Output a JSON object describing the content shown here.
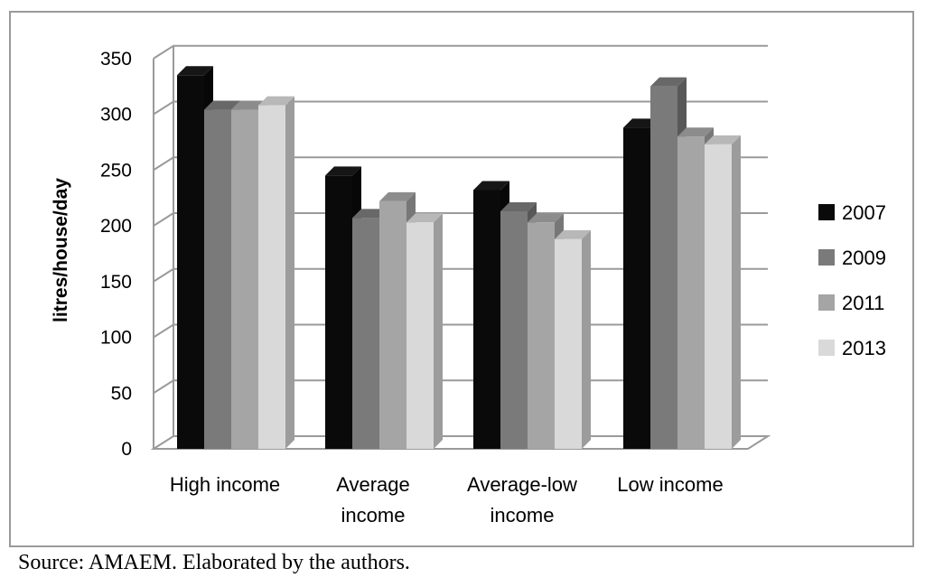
{
  "chart_data": {
    "type": "bar",
    "style": "3d-clustered",
    "categories": [
      "High income",
      "Average income",
      "Average-low income",
      "Low income"
    ],
    "category_lines": [
      [
        "High income"
      ],
      [
        "Average",
        "income"
      ],
      [
        "Average-low",
        "income"
      ],
      [
        "Low income"
      ]
    ],
    "series": [
      {
        "name": "2007",
        "color": "#0a0a0a",
        "values": [
          335,
          245,
          232,
          288
        ]
      },
      {
        "name": "2009",
        "color": "#7a7a7a",
        "values": [
          304,
          207,
          213,
          325
        ]
      },
      {
        "name": "2011",
        "color": "#a5a5a5",
        "values": [
          304,
          222,
          203,
          280
        ]
      },
      {
        "name": "2013",
        "color": "#d9d9d9",
        "values": [
          308,
          203,
          188,
          273
        ]
      }
    ],
    "ylabel": "litres/house/day",
    "xlabel": "",
    "ylim": [
      0,
      350
    ],
    "yticks": [
      0,
      50,
      100,
      150,
      200,
      250,
      300,
      350
    ],
    "grid": true,
    "legend": "right"
  },
  "source_note": "Source: AMAEM. Elaborated by the authors."
}
